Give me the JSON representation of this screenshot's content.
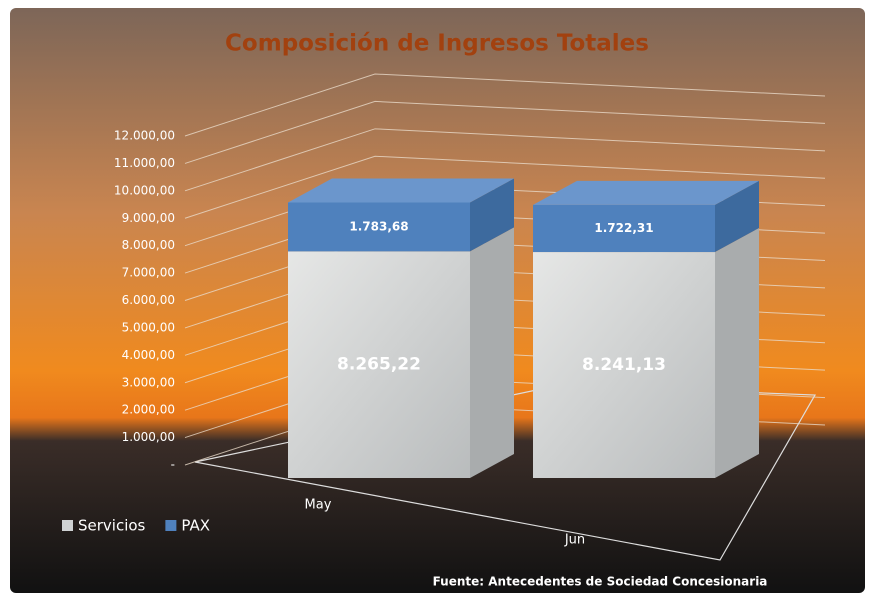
{
  "chart_data": {
    "type": "bar3d_stacked",
    "title": "Composición de Ingresos Totales",
    "source": "Fuente: Antecedentes de Sociedad Concesionaria",
    "categories": [
      "May",
      "Jun"
    ],
    "series": [
      {
        "name": "Servicios",
        "color": "#cfd2d3",
        "values": [
          8265.22,
          8241.13
        ],
        "value_labels": [
          "8.265,22",
          "8.241,13"
        ]
      },
      {
        "name": "PAX",
        "color": "#4f81bd",
        "values": [
          1783.68,
          1722.31
        ],
        "value_labels": [
          "1.783,68",
          "1.722,31"
        ]
      }
    ],
    "ylim": [
      0,
      12000
    ],
    "yticks": [
      {
        "value": 0,
        "label": "-"
      },
      {
        "value": 1000,
        "label": "1.000,00"
      },
      {
        "value": 2000,
        "label": "2.000,00"
      },
      {
        "value": 3000,
        "label": "3.000,00"
      },
      {
        "value": 4000,
        "label": "4.000,00"
      },
      {
        "value": 5000,
        "label": "5.000,00"
      },
      {
        "value": 6000,
        "label": "6.000,00"
      },
      {
        "value": 7000,
        "label": "7.000,00"
      },
      {
        "value": 8000,
        "label": "8.000,00"
      },
      {
        "value": 9000,
        "label": "9.000,00"
      },
      {
        "value": 10000,
        "label": "10.000,00"
      },
      {
        "value": 11000,
        "label": "11.000,00"
      },
      {
        "value": 12000,
        "label": "12.000,00"
      }
    ],
    "grid": true,
    "legend": "bottom-left"
  }
}
